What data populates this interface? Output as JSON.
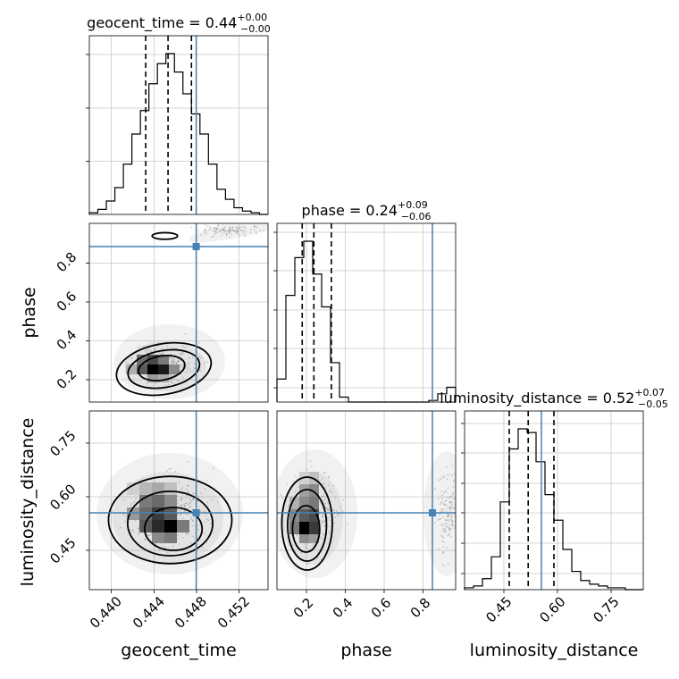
{
  "chart_data": {
    "type": "corner",
    "parameters": [
      "geocent_time",
      "phase",
      "luminosity_distance"
    ],
    "truths": {
      "geocent_time": 0.4474,
      "phase": 0.865,
      "luminosity_distance": 0.555
    },
    "colors": {
      "truth": "#4682b4",
      "hist": "#000000",
      "grid": "#c8c8c8",
      "samples": "#8c8c8c"
    },
    "panels": {
      "geocent_time_hist": {
        "title": {
          "param": "geocent_time",
          "value": "0.44",
          "plus": "+0.00",
          "minus": "−0.00"
        },
        "xlim": [
          0.4374,
          0.4542
        ],
        "quantiles": [
          0.4427,
          0.4448,
          0.447
        ],
        "bins": [
          0.4374,
          0.4382,
          0.439,
          0.4398,
          0.4406,
          0.4414,
          0.4422,
          0.443,
          0.4438,
          0.4446,
          0.4454,
          0.4462,
          0.447,
          0.4478,
          0.4486,
          0.4494,
          0.4502,
          0.451,
          0.4518,
          0.4526,
          0.4534,
          0.4542
        ],
        "counts": [
          1,
          3,
          8,
          16,
          30,
          48,
          62,
          78,
          90,
          96,
          85,
          72,
          60,
          48,
          30,
          15,
          9,
          4,
          2,
          1,
          0
        ]
      },
      "phase_hist": {
        "title": {
          "param": "phase",
          "value": "0.24",
          "plus": "+0.09",
          "minus": "−0.06"
        },
        "xlim": [
          0.05,
          0.97
        ],
        "quantiles": [
          0.18,
          0.24,
          0.33
        ],
        "bins": [
          0.05,
          0.096,
          0.142,
          0.188,
          0.234,
          0.28,
          0.326,
          0.372,
          0.418,
          0.464,
          0.51,
          0.556,
          0.602,
          0.648,
          0.694,
          0.74,
          0.786,
          0.832,
          0.878,
          0.924,
          0.97
        ],
        "counts": [
          14,
          65,
          88,
          98,
          78,
          58,
          24,
          3,
          0,
          0,
          0,
          0,
          0,
          0,
          0,
          0,
          0,
          1,
          5,
          9
        ]
      },
      "luminosity_distance_hist": {
        "title": {
          "param": "luminosity_distance",
          "value": "0.52",
          "plus": "+0.07",
          "minus": "−0.05"
        },
        "xlim": [
          0.34,
          0.84
        ],
        "quantiles": [
          0.465,
          0.518,
          0.59
        ],
        "bins": [
          0.34,
          0.365,
          0.39,
          0.415,
          0.44,
          0.465,
          0.49,
          0.515,
          0.54,
          0.565,
          0.59,
          0.615,
          0.64,
          0.665,
          0.69,
          0.715,
          0.74,
          0.765,
          0.79,
          0.815,
          0.84
        ],
        "counts": [
          1,
          2,
          6,
          18,
          48,
          77,
          88,
          86,
          70,
          52,
          38,
          22,
          10,
          5,
          3,
          2,
          1,
          1,
          0,
          0
        ]
      },
      "phase_vs_geocent_time": {
        "x": "geocent_time",
        "y": "phase",
        "xlim": [
          0.4374,
          0.4542
        ],
        "ylim": [
          0.05,
          0.97
        ],
        "ylabel": "phase",
        "yticks": [
          "0.2",
          "0.4",
          "0.6",
          "0.8"
        ],
        "mode_contours": [
          {
            "cx": 0.4444,
            "cy": 0.22,
            "rx": 0.0045,
            "ry": 0.13,
            "angle": -10
          },
          {
            "cx": 0.4444,
            "cy": 0.22,
            "rx": 0.0034,
            "ry": 0.095,
            "angle": -10
          },
          {
            "cx": 0.4442,
            "cy": 0.225,
            "rx": 0.0022,
            "ry": 0.062,
            "angle": -10
          },
          {
            "cx": 0.4445,
            "cy": 0.905,
            "rx": 0.0012,
            "ry": 0.017,
            "angle": 0
          }
        ]
      },
      "luminosity_distance_vs_geocent_time": {
        "x": "geocent_time",
        "y": "luminosity_distance",
        "xlim": [
          0.4374,
          0.4542
        ],
        "ylim": [
          0.34,
          0.84
        ],
        "ylabel": "luminosity_distance",
        "xlabel": "geocent_time",
        "xticks": [
          "0.440",
          "0.444",
          "0.448",
          "0.452"
        ],
        "yticks": [
          "0.45",
          "0.60",
          "0.75"
        ],
        "mode_contours": [
          {
            "cx": 0.445,
            "cy": 0.535,
            "rx": 0.0058,
            "ry": 0.122,
            "angle": 0
          },
          {
            "cx": 0.445,
            "cy": 0.525,
            "rx": 0.004,
            "ry": 0.09,
            "angle": 0
          },
          {
            "cx": 0.4453,
            "cy": 0.51,
            "rx": 0.0027,
            "ry": 0.06,
            "angle": 0
          }
        ]
      },
      "luminosity_distance_vs_phase": {
        "x": "phase",
        "y": "luminosity_distance",
        "xlim": [
          0.05,
          0.97
        ],
        "ylim": [
          0.34,
          0.84
        ],
        "xlabel": "phase",
        "xticks": [
          "0.2",
          "0.4",
          "0.6",
          "0.8"
        ],
        "mode_contours": [
          {
            "cx": 0.205,
            "cy": 0.525,
            "rx": 0.13,
            "ry": 0.13,
            "angle": 0
          },
          {
            "cx": 0.205,
            "cy": 0.52,
            "rx": 0.1,
            "ry": 0.1,
            "angle": 0
          },
          {
            "cx": 0.2,
            "cy": 0.51,
            "rx": 0.07,
            "ry": 0.065,
            "angle": 0
          }
        ]
      },
      "luminosity_distance_axis": {
        "xlabel": "luminosity_distance",
        "xticks": [
          "0.45",
          "0.60",
          "0.75"
        ]
      }
    }
  }
}
